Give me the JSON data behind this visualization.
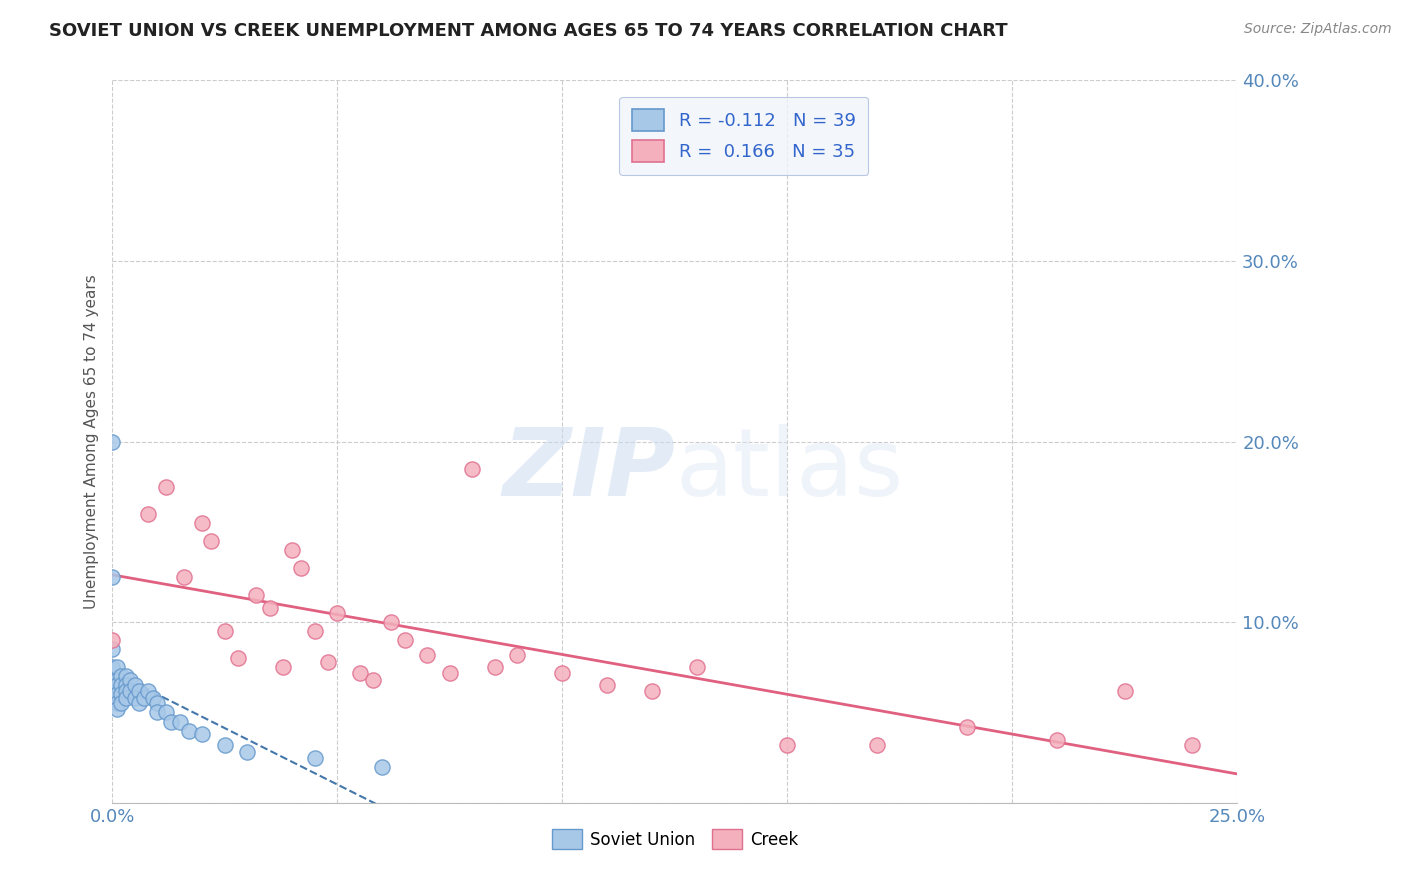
{
  "title": "SOVIET UNION VS CREEK UNEMPLOYMENT AMONG AGES 65 TO 74 YEARS CORRELATION CHART",
  "source": "Source: ZipAtlas.com",
  "ylabel": "Unemployment Among Ages 65 to 74 years",
  "xlim": [
    0.0,
    0.25
  ],
  "ylim": [
    0.0,
    0.4
  ],
  "xticks": [
    0.0,
    0.05,
    0.1,
    0.15,
    0.2,
    0.25
  ],
  "xtick_labels": [
    "0.0%",
    "",
    "",
    "",
    "",
    "25.0%"
  ],
  "yticks": [
    0.0,
    0.1,
    0.2,
    0.3,
    0.4
  ],
  "ytick_labels": [
    "",
    "10.0%",
    "20.0%",
    "30.0%",
    "40.0%"
  ],
  "soviet_R": -0.112,
  "soviet_N": 39,
  "creek_R": 0.166,
  "creek_N": 35,
  "soviet_scatter_color": "#a8c8e8",
  "soviet_edge_color": "#6699cc",
  "creek_scatter_color": "#f4b0bc",
  "creek_edge_color": "#e07090",
  "soviet_line_color": "#4477aa",
  "creek_line_color": "#e06080",
  "bg_color": "#ffffff",
  "grid_color": "#cccccc",
  "legend_bg": "#f0f4fa",
  "legend_edge": "#aabbdd",
  "title_color": "#222222",
  "source_color": "#888888",
  "axis_label_color": "#555555",
  "tick_color": "#5588bb",
  "soviet_x": [
    0.0,
    0.0,
    0.0,
    0.0,
    0.0,
    0.001,
    0.001,
    0.001,
    0.001,
    0.001,
    0.001,
    0.002,
    0.002,
    0.002,
    0.002,
    0.003,
    0.003,
    0.003,
    0.003,
    0.004,
    0.004,
    0.005,
    0.005,
    0.006,
    0.006,
    0.007,
    0.008,
    0.009,
    0.01,
    0.01,
    0.012,
    0.013,
    0.015,
    0.017,
    0.02,
    0.025,
    0.03,
    0.045,
    0.06
  ],
  "soviet_y": [
    0.2,
    0.125,
    0.085,
    0.075,
    0.065,
    0.075,
    0.068,
    0.065,
    0.06,
    0.055,
    0.052,
    0.07,
    0.065,
    0.06,
    0.055,
    0.07,
    0.065,
    0.062,
    0.058,
    0.068,
    0.062,
    0.065,
    0.058,
    0.062,
    0.055,
    0.058,
    0.062,
    0.058,
    0.055,
    0.05,
    0.05,
    0.045,
    0.045,
    0.04,
    0.038,
    0.032,
    0.028,
    0.025,
    0.02
  ],
  "creek_x": [
    0.0,
    0.008,
    0.012,
    0.016,
    0.02,
    0.022,
    0.025,
    0.028,
    0.032,
    0.035,
    0.038,
    0.04,
    0.042,
    0.045,
    0.048,
    0.05,
    0.055,
    0.058,
    0.062,
    0.065,
    0.07,
    0.075,
    0.08,
    0.085,
    0.09,
    0.1,
    0.11,
    0.12,
    0.13,
    0.15,
    0.17,
    0.19,
    0.21,
    0.225,
    0.24
  ],
  "creek_y": [
    0.09,
    0.16,
    0.175,
    0.125,
    0.155,
    0.145,
    0.095,
    0.08,
    0.115,
    0.108,
    0.075,
    0.14,
    0.13,
    0.095,
    0.078,
    0.105,
    0.072,
    0.068,
    0.1,
    0.09,
    0.082,
    0.072,
    0.185,
    0.075,
    0.082,
    0.072,
    0.065,
    0.062,
    0.075,
    0.032,
    0.032,
    0.042,
    0.035,
    0.062,
    0.032
  ]
}
